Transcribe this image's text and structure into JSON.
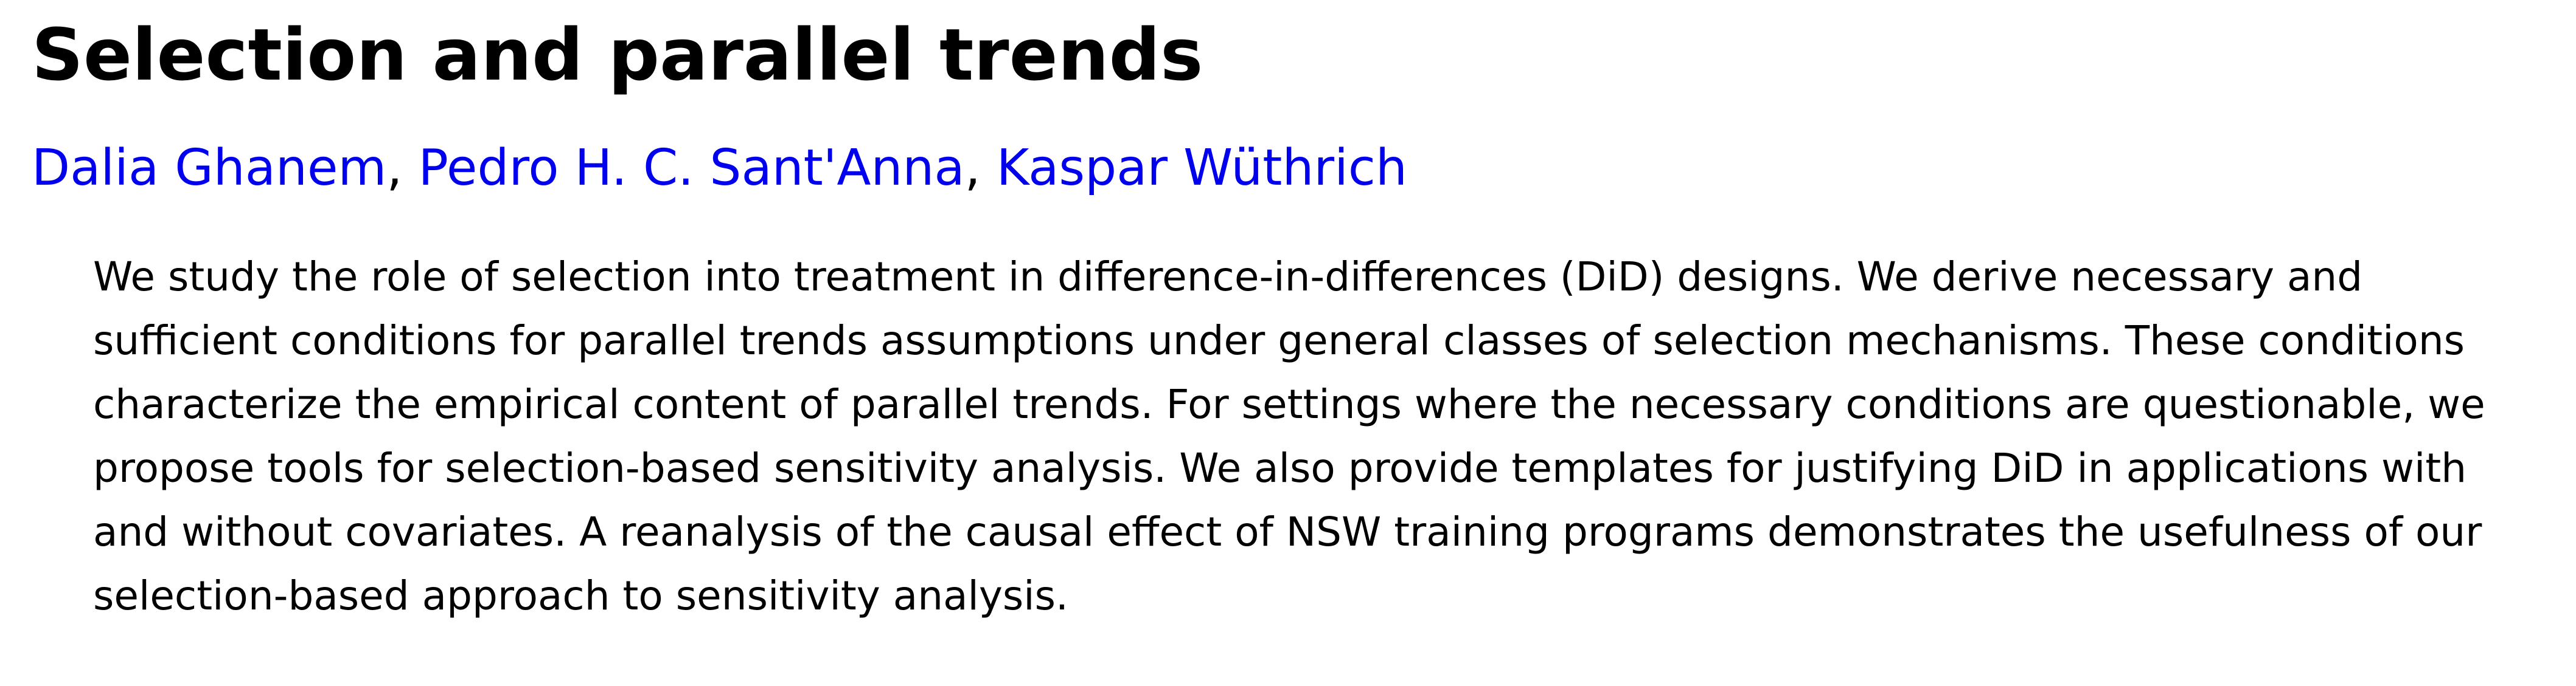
{
  "title": "Selection and parallel trends",
  "authors": [
    {
      "name": "Dalia Ghanem"
    },
    {
      "name": "Pedro H. C. Sant'Anna"
    },
    {
      "name": "Kaspar Wüthrich"
    }
  ],
  "author_separator": ", ",
  "abstract": "We study the role of selection into treatment in difference-in-differences (DiD) designs. We derive necessary and sufficient conditions for parallel trends assumptions under general classes of selection mechanisms. These conditions characterize the empirical content of parallel trends. For settings where the necessary conditions are questionable, we propose tools for selection-based sensitivity analysis. We also provide templates for justifying DiD in applications with and without covariates. A reanalysis of the causal effect of NSW training programs demonstrates the usefulness of our selection-based approach to sensitivity analysis.",
  "colors": {
    "link": "#0000ee",
    "text": "#000000",
    "background": "#ffffff"
  }
}
